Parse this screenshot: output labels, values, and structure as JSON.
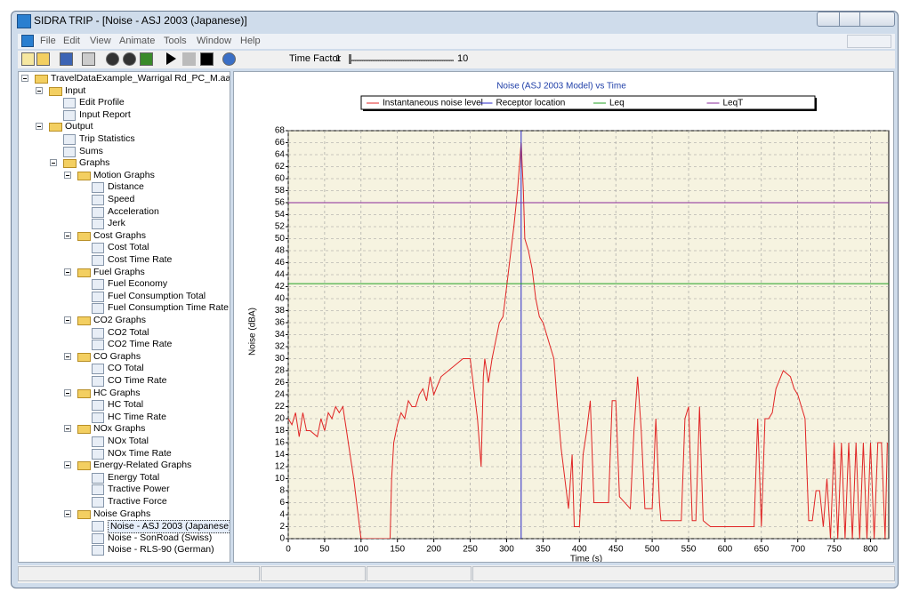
{
  "window": {
    "title": "SIDRA TRIP - [Noise - ASJ 2003 (Japanese)]"
  },
  "menu": [
    "File",
    "Edit",
    "View",
    "Animate",
    "Tools",
    "Window",
    "Help"
  ],
  "toolbar": {
    "time_factor": "Time Factor",
    "min": 1,
    "max": 10
  },
  "tree": {
    "label": "TravelDataExample_Warrigal Rd_PC_M.aam",
    "children": [
      {
        "label": "Input",
        "children": [
          {
            "label": "Edit Profile"
          },
          {
            "label": "Input Report"
          }
        ]
      },
      {
        "label": "Output",
        "children": [
          {
            "label": "Trip Statistics"
          },
          {
            "label": "Sums"
          },
          {
            "label": "Graphs",
            "children": [
              {
                "label": "Motion Graphs",
                "children": [
                  {
                    "label": "Distance"
                  },
                  {
                    "label": "Speed"
                  },
                  {
                    "label": "Acceleration"
                  },
                  {
                    "label": "Jerk"
                  }
                ]
              },
              {
                "label": "Cost Graphs",
                "children": [
                  {
                    "label": "Cost Total"
                  },
                  {
                    "label": "Cost Time Rate"
                  }
                ]
              },
              {
                "label": "Fuel Graphs",
                "children": [
                  {
                    "label": "Fuel Economy"
                  },
                  {
                    "label": "Fuel Consumption Total"
                  },
                  {
                    "label": "Fuel Consumption Time Rate"
                  }
                ]
              },
              {
                "label": "CO2 Graphs",
                "children": [
                  {
                    "label": "CO2 Total"
                  },
                  {
                    "label": "CO2 Time Rate"
                  }
                ]
              },
              {
                "label": "CO Graphs",
                "children": [
                  {
                    "label": "CO Total"
                  },
                  {
                    "label": "CO Time Rate"
                  }
                ]
              },
              {
                "label": "HC Graphs",
                "children": [
                  {
                    "label": "HC Total"
                  },
                  {
                    "label": "HC Time Rate"
                  }
                ]
              },
              {
                "label": "NOx Graphs",
                "children": [
                  {
                    "label": "NOx Total"
                  },
                  {
                    "label": "NOx Time Rate"
                  }
                ]
              },
              {
                "label": "Energy-Related Graphs",
                "children": [
                  {
                    "label": "Energy Total"
                  },
                  {
                    "label": "Tractive Power"
                  },
                  {
                    "label": "Tractive Force"
                  }
                ]
              },
              {
                "label": "Noise Graphs",
                "children": [
                  {
                    "label": "Noise - ASJ 2003 (Japanese)"
                  },
                  {
                    "label": "Noise - SonRoad (Swiss)"
                  },
                  {
                    "label": "Noise - RLS-90 (German)"
                  }
                ]
              }
            ]
          }
        ]
      }
    ]
  },
  "chart_data": {
    "type": "line",
    "title": "Noise (ASJ 2003 Model) vs Time",
    "x_label": "Time (s)",
    "y_label": "Noise (dBA)",
    "xlim": [
      0,
      825
    ],
    "ylim": [
      0,
      68
    ],
    "xticks": [
      0,
      50,
      100,
      150,
      200,
      250,
      300,
      350,
      400,
      450,
      500,
      550,
      600,
      650,
      700,
      750,
      800
    ],
    "yticks": [
      0,
      2,
      4,
      6,
      8,
      10,
      12,
      14,
      16,
      18,
      20,
      22,
      24,
      26,
      28,
      30,
      32,
      34,
      36,
      38,
      40,
      42,
      44,
      46,
      48,
      50,
      52,
      54,
      56,
      58,
      60,
      62,
      64,
      66,
      68
    ],
    "grid": true,
    "series": [
      {
        "name": "Instantaneous noise level",
        "color": "#e02424",
        "x": [
          0,
          5,
          10,
          15,
          20,
          25,
          30,
          40,
          45,
          50,
          55,
          60,
          65,
          70,
          75,
          80,
          85,
          90,
          95,
          100,
          140,
          142,
          145,
          150,
          155,
          160,
          165,
          170,
          175,
          180,
          185,
          190,
          195,
          200,
          210,
          220,
          230,
          240,
          250,
          255,
          260,
          265,
          268,
          270,
          275,
          280,
          285,
          290,
          295,
          300,
          305,
          310,
          315,
          320,
          323,
          325,
          330,
          335,
          340,
          345,
          350,
          355,
          360,
          365,
          370,
          375,
          380,
          385,
          390,
          393,
          400,
          405,
          410,
          415,
          420,
          440,
          445,
          450,
          455,
          470,
          475,
          480,
          485,
          490,
          500,
          505,
          510,
          512,
          540,
          545,
          550,
          555,
          560,
          565,
          570,
          580,
          640,
          645,
          650,
          655,
          660,
          665,
          670,
          680,
          690,
          695,
          700,
          705,
          710,
          715,
          720,
          725,
          730,
          735,
          740,
          745,
          750,
          755,
          760,
          765,
          770,
          775,
          780,
          785,
          790,
          795,
          800,
          805,
          810,
          815,
          820,
          823
        ],
        "values": [
          20,
          19,
          21,
          17,
          21,
          18,
          18,
          17,
          20,
          18,
          21,
          20,
          22,
          21,
          22,
          18,
          14,
          10,
          5,
          0,
          0,
          10,
          16,
          19,
          21,
          20,
          23,
          22,
          22,
          24,
          25,
          23,
          27,
          24,
          27,
          28,
          29,
          30,
          30,
          25,
          20,
          12,
          27,
          30,
          26,
          30,
          33,
          36,
          37,
          42,
          47,
          52,
          58,
          66,
          58,
          50,
          48,
          45,
          40,
          37,
          36,
          34,
          32,
          30,
          22,
          15,
          10,
          5,
          14,
          2,
          2,
          14,
          18,
          23,
          6,
          6,
          23,
          23,
          7,
          5,
          18,
          27,
          18,
          5,
          5,
          20,
          6,
          3,
          3,
          20,
          22,
          3,
          3,
          22,
          3,
          2,
          2,
          20,
          2,
          20,
          20,
          21,
          25,
          28,
          27,
          25,
          24,
          22,
          20,
          3,
          3,
          8,
          8,
          2,
          10,
          0,
          16,
          0,
          16,
          0,
          16,
          0,
          16,
          0,
          16,
          0,
          16,
          0,
          16,
          16,
          0,
          16
        ]
      },
      {
        "name": "Receptor location",
        "color": "#2828c8",
        "x": [
          320,
          320
        ],
        "values": [
          0,
          68
        ]
      },
      {
        "name": "Leq",
        "color": "#22a022",
        "x": [
          0,
          825
        ],
        "values": [
          42.5,
          42.5
        ]
      },
      {
        "name": "LeqT",
        "color": "#8a2a9a",
        "x": [
          0,
          825
        ],
        "values": [
          56,
          56
        ]
      }
    ]
  }
}
